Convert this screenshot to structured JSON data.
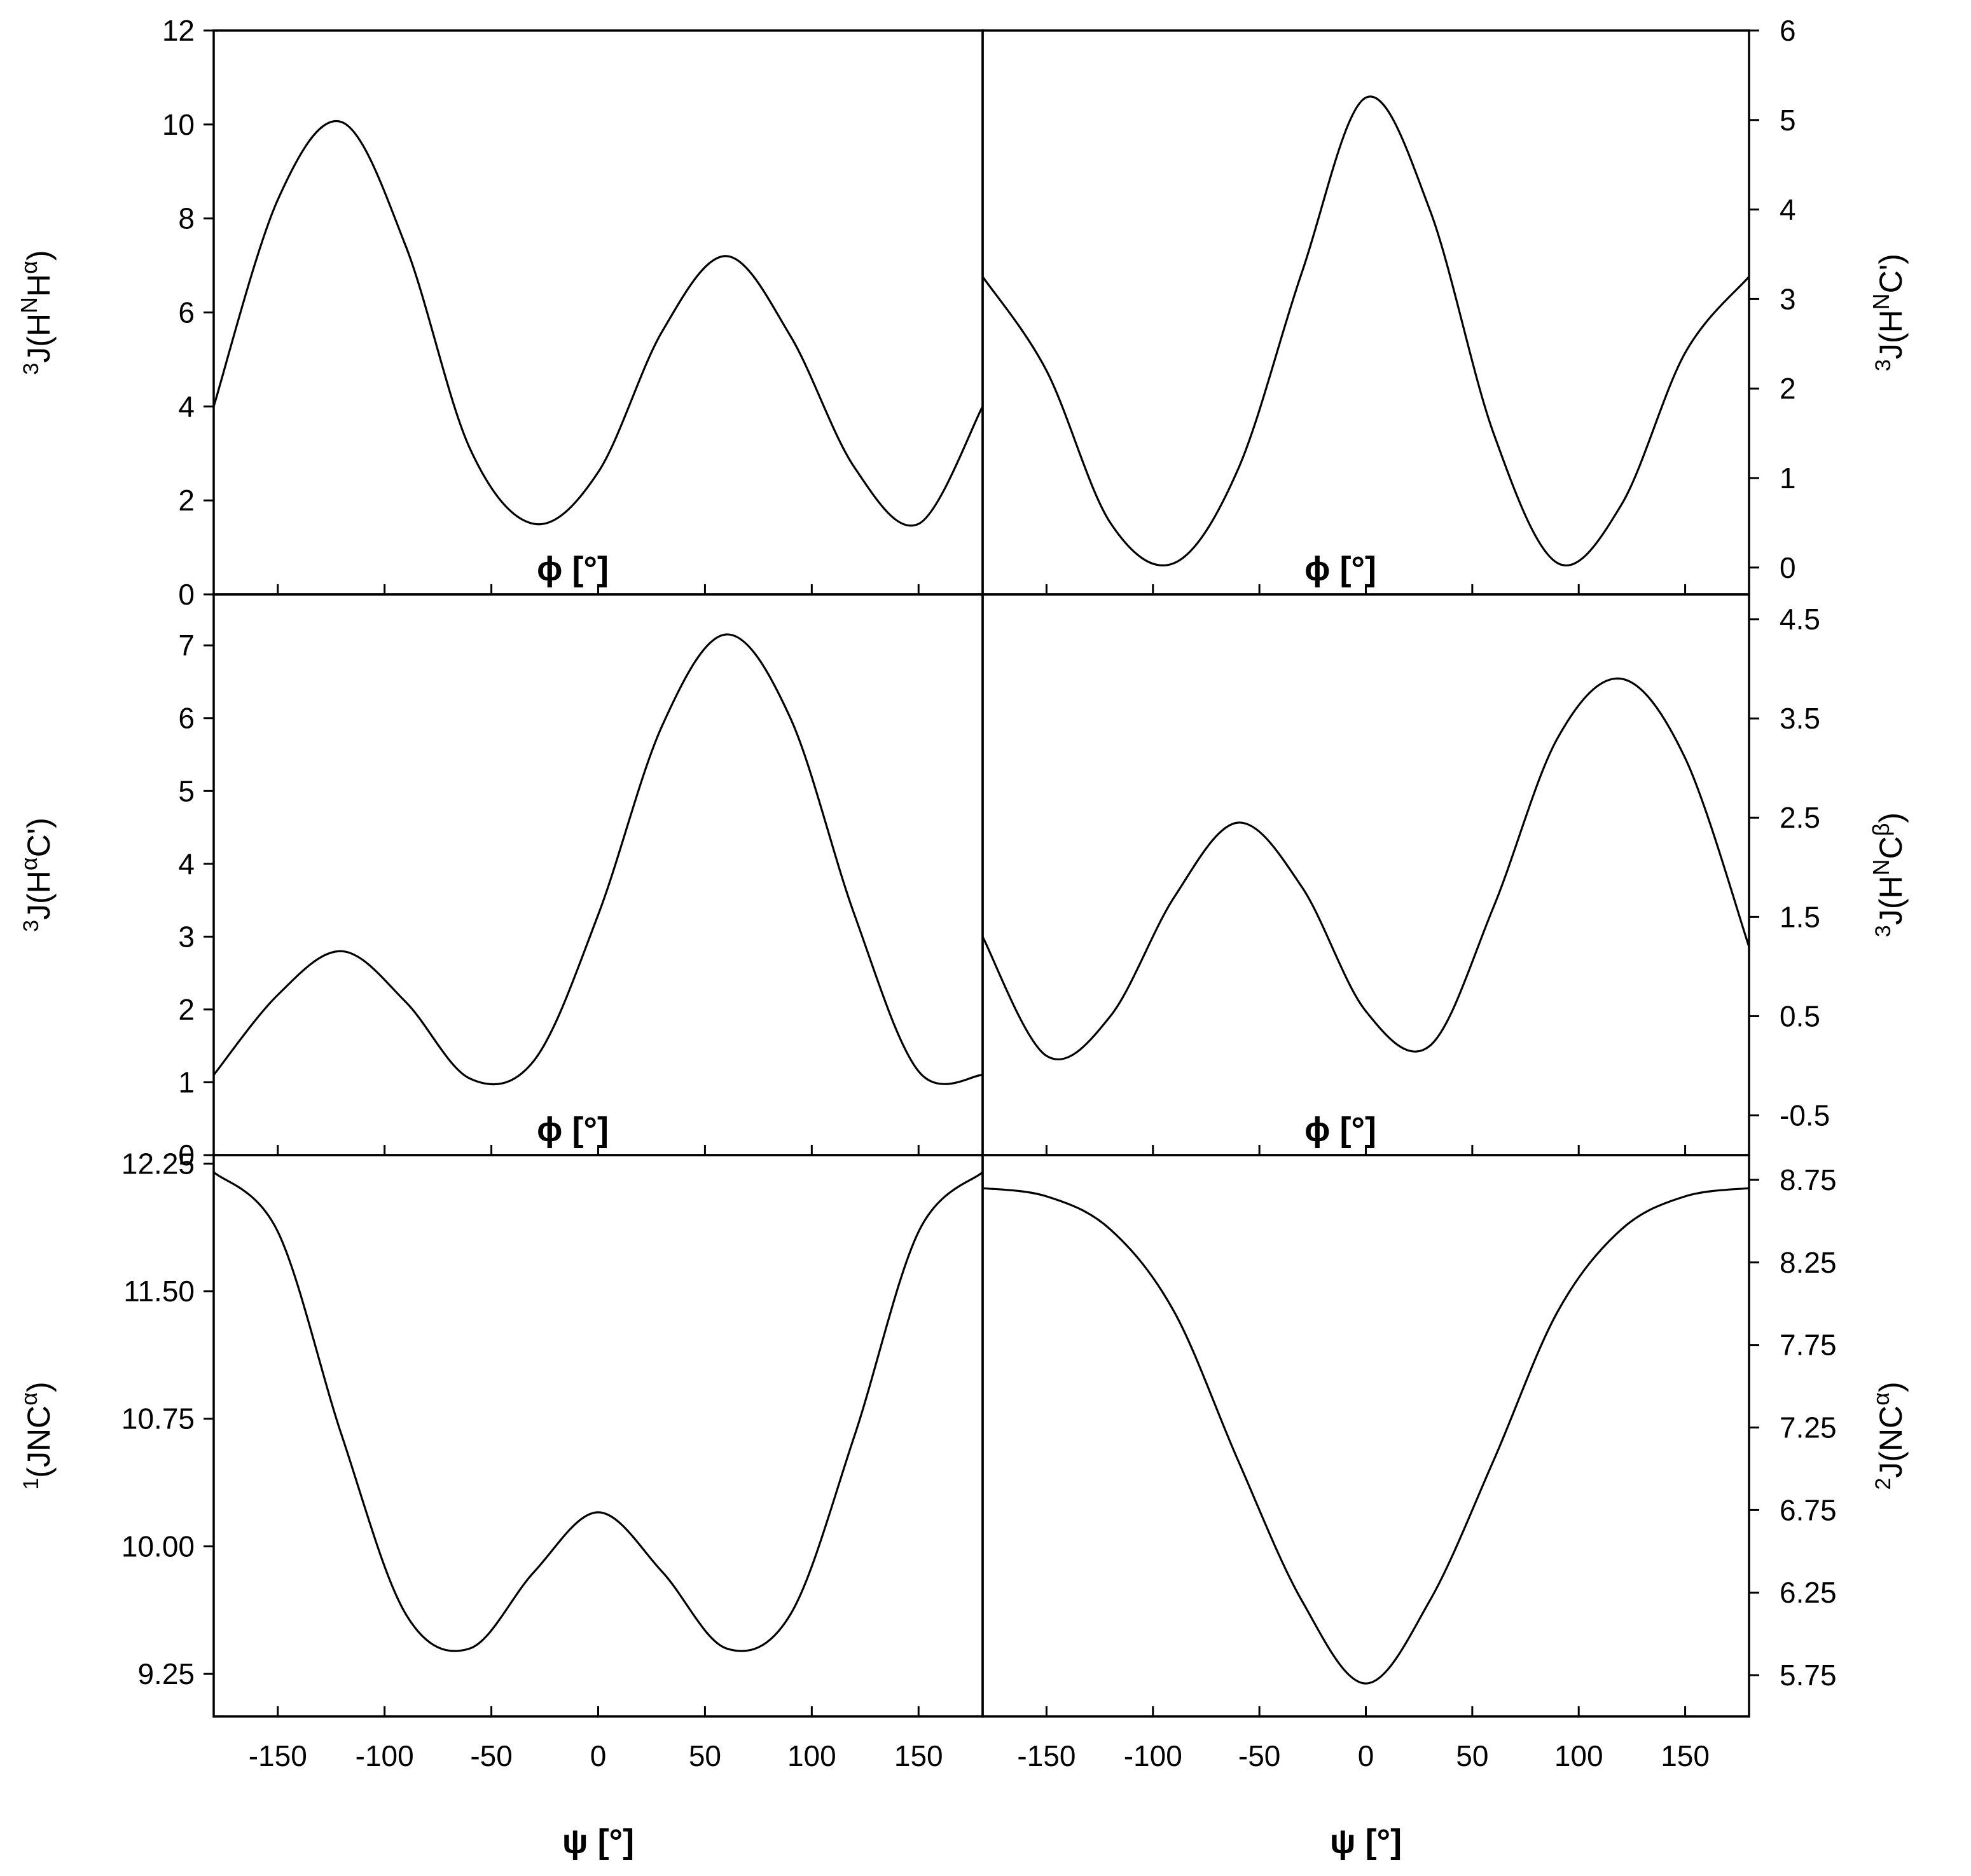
{
  "chart_data": [
    {
      "type": "line",
      "panel": "top-left",
      "x": [
        -180,
        -150,
        -120,
        -90,
        -60,
        -30,
        0,
        30,
        60,
        90,
        120,
        150,
        180
      ],
      "series": [
        {
          "values": [
            4.0,
            8.4,
            10.05,
            7.4,
            3.1,
            1.5,
            2.6,
            5.6,
            7.2,
            5.5,
            2.7,
            1.5,
            4.0
          ]
        }
      ],
      "title": "",
      "xlabel": "ϕ [°]",
      "ylabel": "3J(HNHα)",
      "ylabel_parts": {
        "pre": "3",
        "main": "J(H",
        "sup": "N",
        "main2": "H",
        "sup2": "α",
        "close": ")"
      },
      "yticks": [
        "0",
        "2",
        "4",
        "6",
        "8",
        "10",
        "12"
      ],
      "ylim": [
        0,
        12
      ],
      "y_axis_side": "left",
      "grid": false
    },
    {
      "type": "line",
      "panel": "top-right",
      "x": [
        -180,
        -150,
        -120,
        -90,
        -60,
        -30,
        0,
        30,
        60,
        90,
        120,
        150,
        180
      ],
      "series": [
        {
          "values": [
            3.25,
            2.2,
            0.5,
            0.05,
            1.1,
            3.3,
            5.25,
            4.0,
            1.5,
            0.05,
            0.7,
            2.4,
            3.25
          ]
        }
      ],
      "title": "",
      "xlabel": "ϕ [°]",
      "ylabel": "3J(HNC')",
      "ylabel_parts": {
        "pre": "3",
        "main": "J(H",
        "sup": "N",
        "main2": "C')",
        "sup2": "",
        "close": ""
      },
      "yticks": [
        "0",
        "1",
        "2",
        "3",
        "4",
        "5",
        "6"
      ],
      "ylim": [
        -0.3,
        6
      ],
      "y_axis_side": "right",
      "grid": false
    },
    {
      "type": "line",
      "panel": "middle-left",
      "x": [
        -180,
        -150,
        -120,
        -90,
        -60,
        -30,
        0,
        30,
        60,
        90,
        120,
        150,
        180
      ],
      "series": [
        {
          "values": [
            1.1,
            2.2,
            2.8,
            2.1,
            1.05,
            1.3,
            3.3,
            5.9,
            7.15,
            6.0,
            3.3,
            1.15,
            1.1
          ]
        }
      ],
      "title": "",
      "xlabel": "ϕ [°]",
      "ylabel": "3J(HαC')",
      "ylabel_parts": {
        "pre": "3",
        "main": "J(H",
        "sup": "α",
        "main2": "C')",
        "sup2": "",
        "close": ""
      },
      "yticks": [
        "0",
        "1",
        "2",
        "3",
        "4",
        "5",
        "6",
        "7"
      ],
      "ylim": [
        0,
        7.7
      ],
      "y_axis_side": "left",
      "grid": false
    },
    {
      "type": "line",
      "panel": "middle-right",
      "x": [
        -180,
        -150,
        -120,
        -90,
        -60,
        -30,
        0,
        30,
        60,
        90,
        120,
        150,
        180
      ],
      "series": [
        {
          "values": [
            1.3,
            0.1,
            0.5,
            1.7,
            2.45,
            1.8,
            0.55,
            0.2,
            1.6,
            3.3,
            3.9,
            3.1,
            1.2
          ]
        }
      ],
      "title": "",
      "xlabel": "ϕ [°]",
      "ylabel": "3J(HNCβ)",
      "ylabel_parts": {
        "pre": "3",
        "main": "J(H",
        "sup": "N",
        "main2": "C",
        "sup2": "β",
        "close": ")"
      },
      "yticks": [
        "-0.5",
        "0.5",
        "1.5",
        "2.5",
        "3.5",
        "4.5"
      ],
      "ylim": [
        -0.9,
        4.75
      ],
      "y_axis_side": "right",
      "grid": false
    },
    {
      "type": "line",
      "panel": "bottom-left",
      "x": [
        -180,
        -150,
        -120,
        -90,
        -60,
        -30,
        0,
        30,
        60,
        90,
        120,
        150,
        180
      ],
      "series": [
        {
          "values": [
            12.2,
            11.85,
            10.65,
            9.6,
            9.4,
            9.85,
            10.2,
            9.85,
            9.4,
            9.6,
            10.65,
            11.85,
            12.2
          ]
        }
      ],
      "title": "",
      "xlabel": "ψ [°]",
      "ylabel": "1(JNCα)",
      "ylabel_parts": {
        "pre": "1",
        "main": "(JNC",
        "sup": "α",
        "main2": ")",
        "sup2": "",
        "close": ""
      },
      "xticks": [
        "-150",
        "-100",
        "-50",
        "0",
        "50",
        "100",
        "150"
      ],
      "yticks": [
        "9.25",
        "10.00",
        "10.75",
        "11.50",
        "12.25"
      ],
      "ylim": [
        9.0,
        12.3
      ],
      "y_axis_side": "left",
      "grid": false
    },
    {
      "type": "line",
      "panel": "bottom-right",
      "x": [
        -180,
        -150,
        -120,
        -90,
        -60,
        -30,
        0,
        30,
        60,
        90,
        120,
        150,
        180
      ],
      "series": [
        {
          "values": [
            8.7,
            8.65,
            8.45,
            7.95,
            7.05,
            6.2,
            5.7,
            6.2,
            7.05,
            7.95,
            8.45,
            8.65,
            8.7
          ]
        }
      ],
      "title": "",
      "xlabel": "ψ [°]",
      "ylabel": "2J(NCα)",
      "ylabel_parts": {
        "pre": "2",
        "main": "J(NC",
        "sup": "α",
        "main2": ")",
        "sup2": "",
        "close": ""
      },
      "xticks": [
        "-150",
        "-100",
        "-50",
        "0",
        "50",
        "100",
        "150"
      ],
      "yticks": [
        "5.75",
        "6.25",
        "6.75",
        "7.25",
        "7.75",
        "8.25",
        "8.75"
      ],
      "ylim": [
        5.5,
        8.9
      ],
      "y_axis_side": "right",
      "grid": false
    }
  ]
}
